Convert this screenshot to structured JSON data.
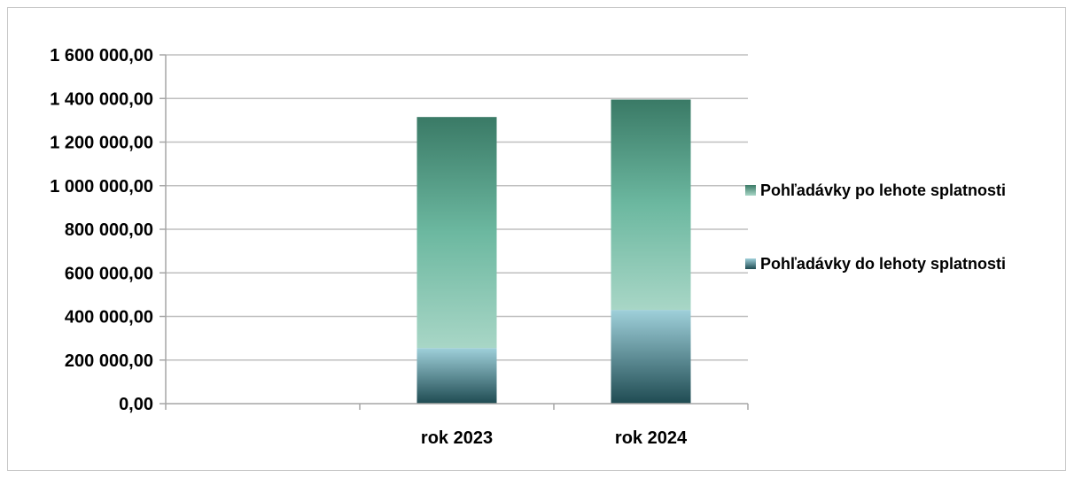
{
  "chart_data": {
    "type": "bar",
    "stacked": true,
    "categories": [
      "",
      "rok 2023",
      "rok 2024"
    ],
    "series": [
      {
        "name": "Pohľadávky do lehoty splatnosti",
        "values": [
          0,
          255000,
          430000
        ]
      },
      {
        "name": "Pohľadávky po lehote splatnosti",
        "values": [
          0,
          1060000,
          965000
        ]
      }
    ],
    "y_tick_labels": [
      "0,00",
      "200 000,00",
      "400 000,00",
      "600 000,00",
      "800 000,00",
      "1 000 000,00",
      "1 200 000,00",
      "1 400 000,00",
      "1 600 000,00"
    ],
    "ylim": [
      0,
      1600000
    ],
    "y_step": 200000,
    "grid": true,
    "legend_position": "right",
    "title": "",
    "xlabel": "",
    "ylabel": "",
    "colors": {
      "series_0_top": "#9fd0da",
      "series_0_bottom": "#1f4b52",
      "series_1_top": "#3a7a66",
      "series_1_mid": "#6cb8a0",
      "series_1_bottom": "#a8d6c6",
      "grid": "#bfbfbf",
      "axis": "#a6a6a6"
    }
  }
}
